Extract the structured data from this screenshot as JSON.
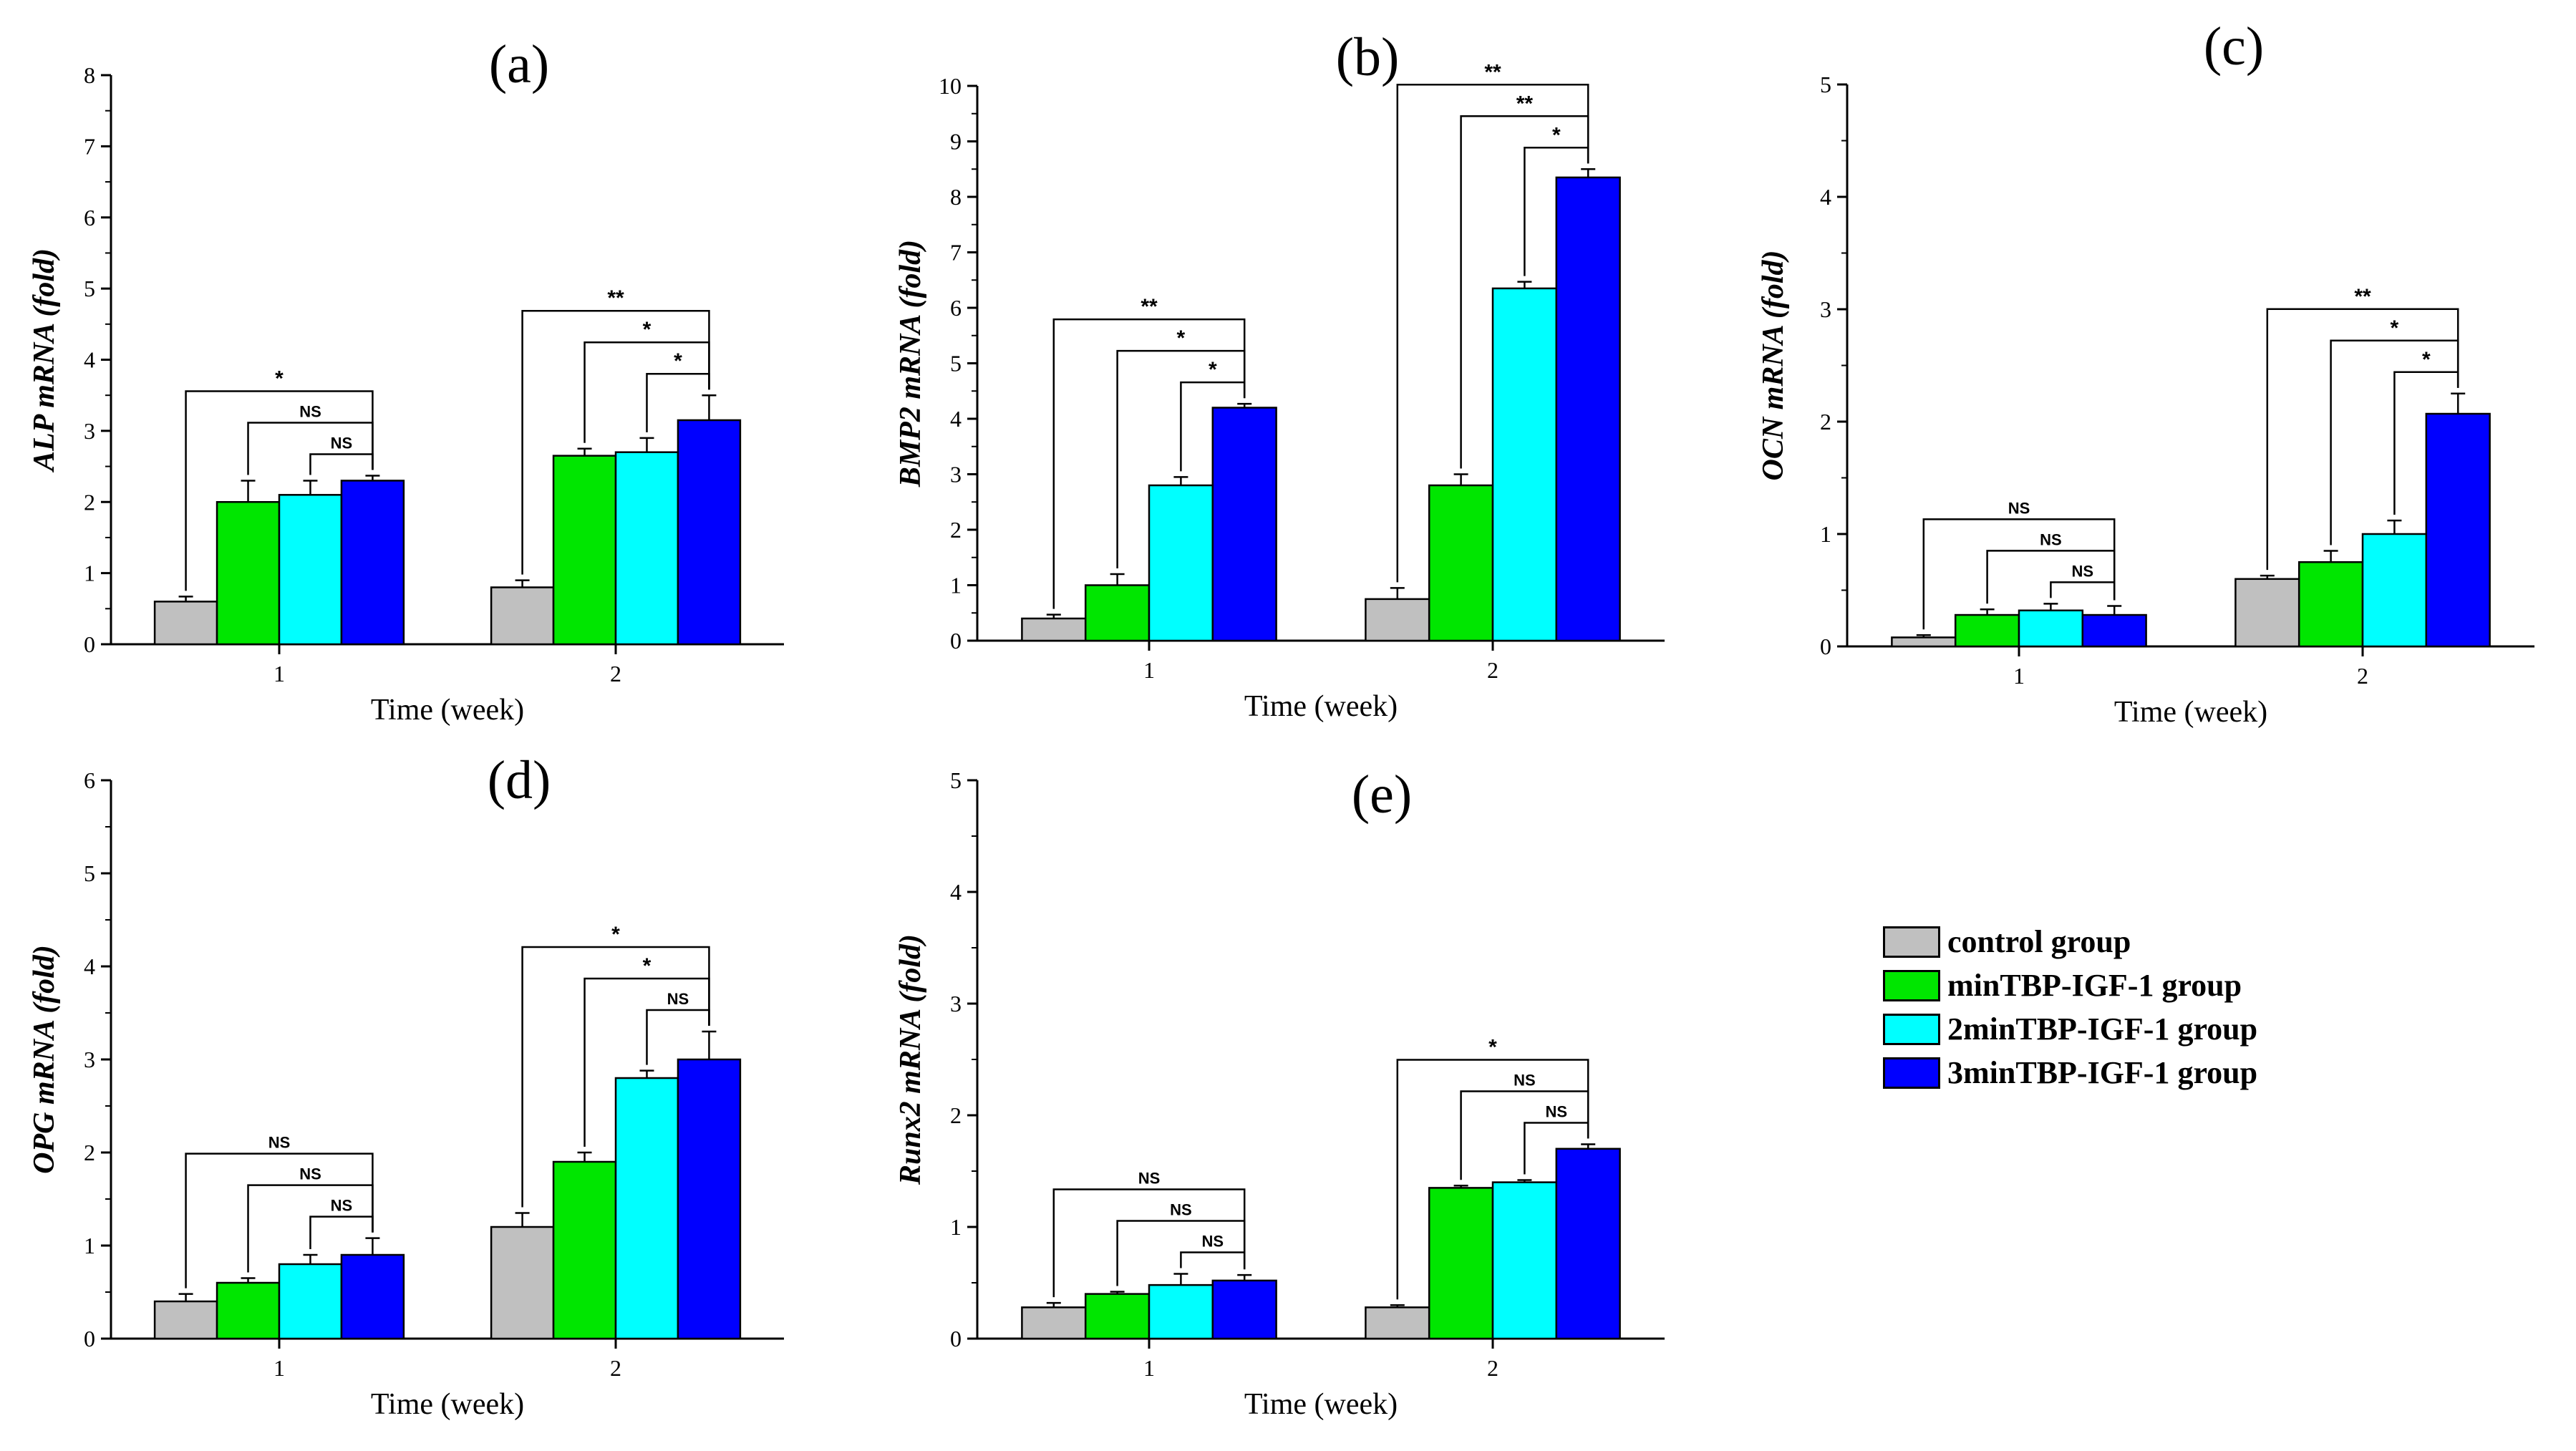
{
  "legend": {
    "items": [
      {
        "label": "control group",
        "color": "#c0c0c0"
      },
      {
        "label": "minTBP-IGF-1 group",
        "color": "#00e600"
      },
      {
        "label": "2minTBP-IGF-1 group",
        "color": "#00ffff"
      },
      {
        "label": "3minTBP-IGF-1 group",
        "color": "#0000ff"
      }
    ]
  },
  "chart_data": [
    {
      "type": "bar",
      "panel": "(a)",
      "ylabel": "ALP mRNA (fold)",
      "xlabel": "Time (week)",
      "categories": [
        "1",
        "2"
      ],
      "ylim": [
        0,
        8
      ],
      "yticks": [
        0,
        1,
        2,
        3,
        4,
        5,
        6,
        7,
        8
      ],
      "series": [
        {
          "name": "control group",
          "values": [
            0.6,
            0.8
          ],
          "errors": [
            0.07,
            0.1
          ]
        },
        {
          "name": "minTBP-IGF-1 group",
          "values": [
            2.0,
            2.65
          ],
          "errors": [
            0.3,
            0.1
          ]
        },
        {
          "name": "2minTBP-IGF-1 group",
          "values": [
            2.1,
            2.7
          ],
          "errors": [
            0.2,
            0.2
          ]
        },
        {
          "name": "3minTBP-IGF-1 group",
          "values": [
            2.3,
            3.15
          ],
          "errors": [
            0.07,
            0.35
          ]
        }
      ],
      "annotations": [
        {
          "category": 0,
          "from": 0,
          "label": "*"
        },
        {
          "category": 0,
          "from": 1,
          "label": "NS"
        },
        {
          "category": 0,
          "from": 2,
          "label": "NS"
        },
        {
          "category": 1,
          "from": 0,
          "label": "**"
        },
        {
          "category": 1,
          "from": 1,
          "label": "*"
        },
        {
          "category": 1,
          "from": 2,
          "label": "*"
        }
      ]
    },
    {
      "type": "bar",
      "panel": "(b)",
      "ylabel": "BMP2 mRNA (fold)",
      "xlabel": "Time (week)",
      "categories": [
        "1",
        "2"
      ],
      "ylim": [
        0,
        10
      ],
      "yticks": [
        0,
        1,
        2,
        3,
        4,
        5,
        6,
        7,
        8,
        9,
        10
      ],
      "series": [
        {
          "name": "control group",
          "values": [
            0.4,
            0.75
          ],
          "errors": [
            0.07,
            0.2
          ]
        },
        {
          "name": "minTBP-IGF-1 group",
          "values": [
            1.0,
            2.8
          ],
          "errors": [
            0.2,
            0.2
          ]
        },
        {
          "name": "2minTBP-IGF-1 group",
          "values": [
            2.8,
            6.35
          ],
          "errors": [
            0.15,
            0.12
          ]
        },
        {
          "name": "3minTBP-IGF-1 group",
          "values": [
            4.2,
            8.35
          ],
          "errors": [
            0.07,
            0.15
          ]
        }
      ],
      "annotations": [
        {
          "category": 0,
          "from": 0,
          "label": "**"
        },
        {
          "category": 0,
          "from": 1,
          "label": "*"
        },
        {
          "category": 0,
          "from": 2,
          "label": "*"
        },
        {
          "category": 1,
          "from": 0,
          "label": "**"
        },
        {
          "category": 1,
          "from": 1,
          "label": "**"
        },
        {
          "category": 1,
          "from": 2,
          "label": "*"
        }
      ]
    },
    {
      "type": "bar",
      "panel": "(c)",
      "ylabel": "OCN mRNA (fold)",
      "xlabel": "Time (week)",
      "categories": [
        "1",
        "2"
      ],
      "ylim": [
        0,
        5
      ],
      "yticks": [
        0,
        1,
        2,
        3,
        4,
        5
      ],
      "series": [
        {
          "name": "control group",
          "values": [
            0.08,
            0.6
          ],
          "errors": [
            0.02,
            0.03
          ]
        },
        {
          "name": "minTBP-IGF-1 group",
          "values": [
            0.28,
            0.75
          ],
          "errors": [
            0.05,
            0.1
          ]
        },
        {
          "name": "2minTBP-IGF-1 group",
          "values": [
            0.32,
            1.0
          ],
          "errors": [
            0.06,
            0.12
          ]
        },
        {
          "name": "3minTBP-IGF-1 group",
          "values": [
            0.28,
            2.07
          ],
          "errors": [
            0.08,
            0.18
          ]
        }
      ],
      "annotations": [
        {
          "category": 0,
          "from": 0,
          "label": "NS"
        },
        {
          "category": 0,
          "from": 1,
          "label": "NS"
        },
        {
          "category": 0,
          "from": 2,
          "label": "NS"
        },
        {
          "category": 1,
          "from": 0,
          "label": "**"
        },
        {
          "category": 1,
          "from": 1,
          "label": "*"
        },
        {
          "category": 1,
          "from": 2,
          "label": "*"
        }
      ]
    },
    {
      "type": "bar",
      "panel": "(d)",
      "ylabel": "OPG mRNA (fold)",
      "xlabel": "Time (week)",
      "categories": [
        "1",
        "2"
      ],
      "ylim": [
        0,
        6
      ],
      "yticks": [
        0,
        1,
        2,
        3,
        4,
        5,
        6
      ],
      "series": [
        {
          "name": "control group",
          "values": [
            0.4,
            1.2
          ],
          "errors": [
            0.08,
            0.15
          ]
        },
        {
          "name": "minTBP-IGF-1 group",
          "values": [
            0.6,
            1.9
          ],
          "errors": [
            0.05,
            0.1
          ]
        },
        {
          "name": "2minTBP-IGF-1 group",
          "values": [
            0.8,
            2.8
          ],
          "errors": [
            0.1,
            0.08
          ]
        },
        {
          "name": "3minTBP-IGF-1 group",
          "values": [
            0.9,
            3.0
          ],
          "errors": [
            0.18,
            0.3
          ]
        }
      ],
      "annotations": [
        {
          "category": 0,
          "from": 0,
          "label": "NS"
        },
        {
          "category": 0,
          "from": 1,
          "label": "NS"
        },
        {
          "category": 0,
          "from": 2,
          "label": "NS"
        },
        {
          "category": 1,
          "from": 0,
          "label": "*"
        },
        {
          "category": 1,
          "from": 1,
          "label": "*"
        },
        {
          "category": 1,
          "from": 2,
          "label": "NS"
        }
      ]
    },
    {
      "type": "bar",
      "panel": "(e)",
      "ylabel": "Runx2 mRNA (fold)",
      "xlabel": "Time (week)",
      "categories": [
        "1",
        "2"
      ],
      "ylim": [
        0,
        5
      ],
      "yticks": [
        0,
        1,
        2,
        3,
        4,
        5
      ],
      "series": [
        {
          "name": "control group",
          "values": [
            0.28,
            0.28
          ],
          "errors": [
            0.04,
            0.02
          ]
        },
        {
          "name": "minTBP-IGF-1 group",
          "values": [
            0.4,
            1.35
          ],
          "errors": [
            0.02,
            0.02
          ]
        },
        {
          "name": "2minTBP-IGF-1 group",
          "values": [
            0.48,
            1.4
          ],
          "errors": [
            0.1,
            0.02
          ]
        },
        {
          "name": "3minTBP-IGF-1 group",
          "values": [
            0.52,
            1.7
          ],
          "errors": [
            0.05,
            0.04
          ]
        }
      ],
      "annotations": [
        {
          "category": 0,
          "from": 0,
          "label": "NS"
        },
        {
          "category": 0,
          "from": 1,
          "label": "NS"
        },
        {
          "category": 0,
          "from": 2,
          "label": "NS"
        },
        {
          "category": 1,
          "from": 0,
          "label": "*"
        },
        {
          "category": 1,
          "from": 1,
          "label": "NS"
        },
        {
          "category": 1,
          "from": 2,
          "label": "NS"
        }
      ]
    }
  ]
}
